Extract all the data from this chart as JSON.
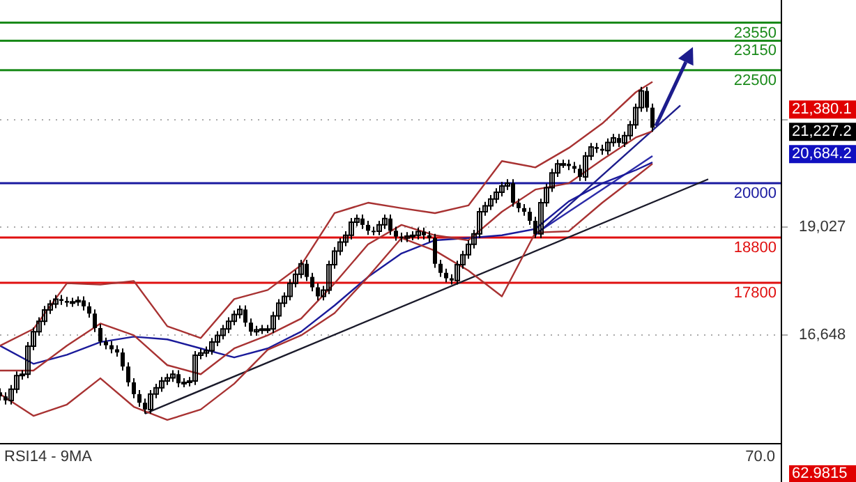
{
  "chart_data": {
    "type": "candlestick",
    "color": "#000000",
    "categories": [
      null,
      null,
      null,
      null,
      null,
      null,
      null,
      null,
      null,
      null,
      null,
      null,
      null,
      null,
      null,
      null,
      null,
      null,
      null,
      null,
      null,
      null,
      null,
      null,
      null,
      null,
      null,
      null,
      null,
      null,
      null,
      null,
      null,
      null,
      null,
      null,
      null,
      null,
      null,
      null,
      null,
      null,
      null,
      null,
      null,
      null,
      null,
      null,
      null,
      null,
      null,
      null,
      null,
      null,
      null,
      null,
      null,
      null,
      null,
      null,
      null,
      null,
      null,
      null,
      null,
      null,
      null,
      null,
      null,
      null,
      null,
      null,
      null,
      null,
      null,
      null,
      null,
      null,
      null,
      null,
      null,
      null,
      null,
      null,
      null,
      null,
      null,
      null,
      null,
      null,
      null,
      null,
      null,
      null,
      null,
      null,
      null,
      null,
      null,
      null,
      null,
      null,
      null,
      null,
      null,
      null,
      null,
      null,
      null,
      null,
      null,
      null,
      null,
      null,
      null,
      null,
      null,
      null,
      null,
      null,
      null,
      null,
      null,
      null,
      null,
      null,
      null,
      null,
      null,
      null,
      null,
      null,
      null,
      null,
      null,
      null,
      null,
      null,
      null,
      null,
      null
    ],
    "ohlc": [
      [
        15380,
        15470,
        15200,
        15290
      ],
      [
        15290,
        15380,
        15110,
        15200
      ],
      [
        15200,
        15540,
        15110,
        15450
      ],
      [
        15450,
        15840,
        15360,
        15750
      ],
      [
        15750,
        15870,
        15660,
        15780
      ],
      [
        15780,
        16490,
        15690,
        16400
      ],
      [
        16400,
        16810,
        16310,
        16720
      ],
      [
        16720,
        17040,
        16630,
        16950
      ],
      [
        16950,
        17290,
        16860,
        17200
      ],
      [
        17200,
        17420,
        17110,
        17330
      ],
      [
        17330,
        17530,
        17240,
        17440
      ],
      [
        17440,
        17530,
        17310,
        17400
      ],
      [
        17400,
        17490,
        17270,
        17360
      ],
      [
        17360,
        17470,
        17270,
        17380
      ],
      [
        17380,
        17500,
        17290,
        17410
      ],
      [
        17410,
        17500,
        17190,
        17280
      ],
      [
        17280,
        17370,
        17030,
        17120
      ],
      [
        17120,
        17210,
        16710,
        16800
      ],
      [
        16800,
        16890,
        16410,
        16500
      ],
      [
        16500,
        16590,
        16330,
        16420
      ],
      [
        16420,
        16510,
        16240,
        16330
      ],
      [
        16330,
        16420,
        16170,
        16260
      ],
      [
        16260,
        16350,
        15860,
        15950
      ],
      [
        15950,
        16040,
        15510,
        15600
      ],
      [
        15600,
        15690,
        15250,
        15340
      ],
      [
        15340,
        15430,
        15060,
        15150
      ],
      [
        15150,
        15240,
        14910,
        15000
      ],
      [
        15000,
        15430,
        14910,
        15340
      ],
      [
        15340,
        15570,
        15250,
        15480
      ],
      [
        15480,
        15720,
        15390,
        15630
      ],
      [
        15630,
        15790,
        15540,
        15700
      ],
      [
        15700,
        15870,
        15610,
        15780
      ],
      [
        15780,
        15870,
        15490,
        15580
      ],
      [
        15580,
        15690,
        15490,
        15600
      ],
      [
        15600,
        15720,
        15510,
        15630
      ],
      [
        15630,
        16290,
        15540,
        16200
      ],
      [
        16200,
        16340,
        16110,
        16250
      ],
      [
        16250,
        16390,
        16160,
        16300
      ],
      [
        16300,
        16580,
        16210,
        16490
      ],
      [
        16490,
        16730,
        16400,
        16640
      ],
      [
        16640,
        16870,
        16550,
        16780
      ],
      [
        16780,
        17040,
        16690,
        16950
      ],
      [
        16950,
        17190,
        16860,
        17100
      ],
      [
        17100,
        17300,
        17010,
        17210
      ],
      [
        17210,
        17300,
        16830,
        16920
      ],
      [
        16920,
        17010,
        16630,
        16720
      ],
      [
        16720,
        16850,
        16630,
        16760
      ],
      [
        16760,
        16870,
        16670,
        16780
      ],
      [
        16780,
        16870,
        16690,
        16780
      ],
      [
        16780,
        17160,
        16690,
        17070
      ],
      [
        17070,
        17440,
        16980,
        17350
      ],
      [
        17350,
        17590,
        17260,
        17500
      ],
      [
        17500,
        17880,
        17410,
        17790
      ],
      [
        17790,
        18080,
        17700,
        17990
      ],
      [
        17990,
        18310,
        17900,
        18220
      ],
      [
        18220,
        18310,
        17840,
        17930
      ],
      [
        17930,
        18020,
        17610,
        17700
      ],
      [
        17700,
        17790,
        17410,
        17500
      ],
      [
        17500,
        17730,
        17410,
        17640
      ],
      [
        17640,
        18290,
        17550,
        18200
      ],
      [
        18200,
        18590,
        18110,
        18500
      ],
      [
        18500,
        18790,
        18410,
        18700
      ],
      [
        18700,
        18940,
        18610,
        18850
      ],
      [
        18850,
        19230,
        18760,
        19140
      ],
      [
        19140,
        19310,
        19050,
        19220
      ],
      [
        19220,
        19310,
        18990,
        19080
      ],
      [
        19080,
        19170,
        18860,
        18950
      ],
      [
        18950,
        19040,
        18850,
        18940
      ],
      [
        18940,
        19170,
        18850,
        19080
      ],
      [
        19080,
        19310,
        18990,
        19220
      ],
      [
        19220,
        19310,
        18860,
        18950
      ],
      [
        18950,
        19040,
        18730,
        18820
      ],
      [
        18820,
        18910,
        18700,
        18790
      ],
      [
        18790,
        18920,
        18700,
        18830
      ],
      [
        18830,
        18940,
        18740,
        18850
      ],
      [
        18850,
        19020,
        18760,
        18930
      ],
      [
        18930,
        19020,
        18760,
        18850
      ],
      [
        18850,
        18940,
        18700,
        18790
      ],
      [
        18790,
        18880,
        18130,
        18220
      ],
      [
        18220,
        18310,
        17930,
        18020
      ],
      [
        18020,
        18110,
        17810,
        17900
      ],
      [
        17900,
        17990,
        17760,
        17850
      ],
      [
        17850,
        18290,
        17760,
        18200
      ],
      [
        18200,
        18510,
        18110,
        18420
      ],
      [
        18420,
        18740,
        18330,
        18650
      ],
      [
        18650,
        18970,
        18560,
        18880
      ],
      [
        18880,
        19460,
        18790,
        19370
      ],
      [
        19370,
        19590,
        19280,
        19500
      ],
      [
        19500,
        19740,
        19410,
        19650
      ],
      [
        19650,
        19890,
        19560,
        19800
      ],
      [
        19800,
        20030,
        19710,
        19940
      ],
      [
        19940,
        20090,
        19850,
        20000
      ],
      [
        20000,
        20090,
        19480,
        19570
      ],
      [
        19570,
        19660,
        19360,
        19450
      ],
      [
        19450,
        19540,
        19280,
        19370
      ],
      [
        19370,
        19460,
        19080,
        19170
      ],
      [
        19170,
        19260,
        18790,
        18880
      ],
      [
        18880,
        19660,
        18790,
        19570
      ],
      [
        19570,
        19990,
        19480,
        19900
      ],
      [
        19900,
        20320,
        19810,
        20230
      ],
      [
        20230,
        20520,
        20140,
        20430
      ],
      [
        20430,
        20520,
        20340,
        20430
      ],
      [
        20430,
        20520,
        20290,
        20380
      ],
      [
        20380,
        20470,
        20230,
        20320
      ],
      [
        20320,
        20410,
        20050,
        20140
      ],
      [
        20140,
        20690,
        20050,
        20600
      ],
      [
        20600,
        20890,
        20510,
        20800
      ],
      [
        20800,
        20890,
        20670,
        20760
      ],
      [
        20760,
        20850,
        20630,
        20720
      ],
      [
        20720,
        20990,
        20630,
        20900
      ],
      [
        20900,
        21090,
        20810,
        21000
      ],
      [
        21000,
        21090,
        20800,
        20890
      ],
      [
        20890,
        21140,
        20800,
        21050
      ],
      [
        21050,
        21380,
        20960,
        21290
      ],
      [
        21290,
        21760,
        21200,
        21670
      ],
      [
        21670,
        22130,
        21580,
        22040
      ],
      [
        22040,
        22130,
        21580,
        21670
      ],
      [
        21670,
        21760,
        21140,
        21227.2
      ],
      null,
      null,
      null,
      null,
      null,
      null,
      null,
      null,
      null,
      null,
      null,
      null,
      null,
      null,
      null,
      null,
      null,
      null,
      null,
      null,
      null,
      null,
      null
    ],
    "series": [
      {
        "type": "line",
        "color": "#a83232",
        "values": [
          16410,
          null,
          null,
          null,
          null,
          null,
          16780,
          null,
          null,
          null,
          null,
          null,
          17790,
          null,
          null,
          null,
          null,
          null,
          17760,
          null,
          null,
          null,
          null,
          null,
          17840,
          null,
          null,
          null,
          null,
          null,
          16840,
          null,
          null,
          null,
          null,
          null,
          16580,
          null,
          null,
          null,
          null,
          null,
          17440,
          null,
          null,
          null,
          null,
          null,
          17640,
          null,
          null,
          null,
          null,
          null,
          18190,
          null,
          null,
          null,
          null,
          null,
          19340,
          null,
          null,
          null,
          null,
          null,
          19570,
          null,
          null,
          null,
          null,
          null,
          19450,
          null,
          null,
          null,
          null,
          null,
          19340,
          null,
          null,
          null,
          null,
          null,
          19510,
          null,
          null,
          null,
          null,
          null,
          20490,
          null,
          null,
          null,
          null,
          null,
          20350,
          null,
          null,
          null,
          null,
          null,
          20780,
          null,
          null,
          null,
          null,
          null,
          21320,
          null,
          null,
          null,
          null,
          null,
          22010,
          null,
          null,
          22240,
          null,
          null,
          null,
          null,
          null,
          null,
          null,
          null,
          null,
          null,
          null,
          null,
          null,
          null,
          null,
          null,
          null,
          null,
          null,
          null,
          null,
          null,
          null
        ]
      },
      {
        "type": "line",
        "color": "#a83232",
        "values": [
          15340,
          null,
          null,
          null,
          null,
          null,
          14860,
          null,
          null,
          null,
          null,
          null,
          15110,
          null,
          null,
          null,
          null,
          null,
          15690,
          null,
          null,
          null,
          null,
          null,
          15060,
          null,
          null,
          null,
          null,
          null,
          14770,
          null,
          null,
          null,
          null,
          null,
          15000,
          null,
          null,
          null,
          null,
          null,
          15570,
          null,
          null,
          null,
          null,
          null,
          16320,
          null,
          null,
          null,
          null,
          null,
          16640,
          null,
          null,
          null,
          null,
          null,
          17130,
          null,
          null,
          null,
          null,
          null,
          17930,
          null,
          null,
          null,
          null,
          null,
          18790,
          null,
          null,
          null,
          null,
          null,
          18510,
          null,
          null,
          null,
          null,
          null,
          18070,
          null,
          null,
          null,
          null,
          null,
          17500,
          null,
          null,
          null,
          null,
          null,
          18910,
          null,
          null,
          null,
          null,
          null,
          18940,
          null,
          null,
          null,
          null,
          null,
          19570,
          null,
          null,
          null,
          null,
          null,
          20140,
          null,
          null,
          20430,
          null,
          null,
          null,
          null,
          null,
          null,
          null,
          null,
          null,
          null,
          null,
          null,
          null,
          null,
          null,
          null,
          null,
          null,
          null,
          null,
          null,
          null,
          null
        ]
      },
      {
        "type": "line",
        "color": "#a83232",
        "values": [
          15860,
          null,
          null,
          null,
          null,
          null,
          15860,
          null,
          null,
          null,
          null,
          null,
          16410,
          null,
          null,
          null,
          null,
          null,
          16900,
          null,
          null,
          null,
          null,
          null,
          16640,
          null,
          null,
          null,
          null,
          null,
          15980,
          null,
          null,
          null,
          null,
          null,
          15780,
          null,
          null,
          null,
          null,
          null,
          16350,
          null,
          null,
          null,
          null,
          null,
          16640,
          null,
          null,
          null,
          null,
          null,
          17010,
          null,
          null,
          null,
          null,
          null,
          17790,
          null,
          null,
          null,
          null,
          null,
          18650,
          null,
          null,
          null,
          null,
          null,
          19080,
          null,
          null,
          null,
          null,
          null,
          18850,
          null,
          null,
          null,
          null,
          null,
          18740,
          null,
          null,
          null,
          null,
          null,
          19370,
          null,
          null,
          null,
          null,
          null,
          19860,
          null,
          null,
          null,
          null,
          null,
          20000,
          null,
          null,
          null,
          null,
          null,
          20520,
          null,
          null,
          null,
          null,
          null,
          21010,
          null,
          null,
          21150,
          null,
          null,
          null,
          null,
          null,
          null,
          null,
          null,
          null,
          null,
          null,
          null,
          null,
          null,
          null,
          null,
          null,
          null,
          null,
          null,
          null,
          null,
          null
        ]
      },
      {
        "type": "line",
        "color": "#1a1a9a",
        "values": [
          16410,
          null,
          null,
          null,
          null,
          null,
          16010,
          null,
          null,
          null,
          null,
          null,
          16210,
          null,
          null,
          null,
          null,
          null,
          16490,
          null,
          null,
          null,
          null,
          null,
          16610,
          null,
          null,
          null,
          null,
          null,
          16550,
          null,
          null,
          null,
          null,
          null,
          16350,
          null,
          null,
          null,
          null,
          null,
          16150,
          null,
          null,
          null,
          null,
          null,
          16350,
          null,
          null,
          null,
          null,
          null,
          16720,
          null,
          null,
          null,
          null,
          null,
          17300,
          null,
          null,
          null,
          null,
          null,
          17930,
          null,
          null,
          null,
          null,
          null,
          18450,
          null,
          null,
          null,
          null,
          null,
          18740,
          null,
          null,
          null,
          null,
          null,
          18790,
          null,
          null,
          null,
          null,
          null,
          18850,
          null,
          null,
          null,
          null,
          null,
          18990,
          null,
          null,
          null,
          null,
          null,
          19600,
          null,
          null,
          null,
          null,
          null,
          20000,
          null,
          null,
          null,
          null,
          null,
          20290,
          null,
          null,
          20460,
          null,
          null,
          null,
          null,
          null,
          null,
          null,
          null,
          null,
          null,
          null,
          null,
          null,
          null,
          null,
          null,
          null,
          null,
          null,
          null,
          null,
          null,
          null
        ]
      },
      {
        "type": "line",
        "color": "#1a1a2a",
        "values": [
          null,
          null,
          null,
          null,
          null,
          null,
          null,
          null,
          null,
          null,
          null,
          null,
          null,
          null,
          null,
          null,
          null,
          null,
          null,
          null,
          null,
          null,
          null,
          null,
          null,
          null,
          14910,
          null,
          null,
          null,
          null,
          null,
          null,
          null,
          null,
          null,
          null,
          null,
          null,
          null,
          null,
          null,
          null,
          null,
          null,
          null,
          null,
          null,
          null,
          null,
          null,
          null,
          null,
          null,
          null,
          null,
          null,
          null,
          null,
          null,
          null,
          null,
          null,
          null,
          null,
          null,
          null,
          null,
          null,
          null,
          null,
          null,
          null,
          null,
          null,
          null,
          null,
          null,
          null,
          null,
          null,
          null,
          null,
          null,
          null,
          null,
          null,
          null,
          null,
          null,
          null,
          null,
          null,
          null,
          null,
          null,
          null,
          null,
          null,
          null,
          null,
          null,
          null,
          null,
          null,
          null,
          null,
          null,
          null,
          null,
          null,
          null,
          null,
          null,
          null,
          null,
          null,
          null,
          null,
          null,
          null,
          null,
          null,
          null,
          null,
          null,
          null,
          20090,
          null,
          null,
          null,
          null,
          null,
          null,
          null,
          null,
          null,
          null,
          null,
          null,
          null
        ]
      },
      {
        "type": "line",
        "color": "#1c1c8c",
        "values": [
          null,
          null,
          null,
          null,
          null,
          null,
          null,
          null,
          null,
          null,
          null,
          null,
          null,
          null,
          null,
          null,
          null,
          null,
          null,
          null,
          null,
          null,
          null,
          null,
          null,
          null,
          null,
          null,
          null,
          null,
          null,
          null,
          null,
          null,
          null,
          null,
          null,
          null,
          null,
          null,
          null,
          null,
          null,
          null,
          null,
          null,
          null,
          null,
          null,
          null,
          null,
          null,
          null,
          null,
          null,
          null,
          null,
          null,
          null,
          null,
          null,
          null,
          null,
          null,
          null,
          null,
          null,
          null,
          null,
          null,
          null,
          null,
          null,
          null,
          null,
          null,
          null,
          null,
          null,
          null,
          null,
          null,
          null,
          null,
          null,
          null,
          null,
          null,
          null,
          null,
          null,
          null,
          null,
          null,
          null,
          null,
          18850,
          null,
          null,
          null,
          null,
          null,
          null,
          null,
          null,
          null,
          null,
          null,
          null,
          null,
          null,
          null,
          null,
          null,
          null,
          null,
          null,
          null,
          null,
          null,
          null,
          null,
          21720,
          null,
          null,
          null,
          null,
          null,
          null,
          null,
          null,
          null,
          null,
          null,
          null,
          null,
          null,
          null,
          null,
          null,
          null
        ]
      },
      {
        "type": "line",
        "color": "#2a2aa8",
        "values": [
          null,
          null,
          null,
          null,
          null,
          null,
          null,
          null,
          null,
          null,
          null,
          null,
          null,
          null,
          null,
          null,
          null,
          null,
          null,
          null,
          null,
          null,
          null,
          null,
          null,
          null,
          null,
          null,
          null,
          null,
          null,
          null,
          null,
          null,
          null,
          null,
          null,
          null,
          null,
          null,
          null,
          null,
          null,
          null,
          null,
          null,
          null,
          null,
          null,
          null,
          null,
          null,
          null,
          null,
          null,
          null,
          null,
          null,
          null,
          null,
          null,
          null,
          null,
          null,
          null,
          null,
          null,
          null,
          null,
          null,
          null,
          null,
          null,
          null,
          null,
          null,
          null,
          null,
          null,
          null,
          null,
          null,
          null,
          null,
          null,
          null,
          null,
          null,
          null,
          null,
          null,
          null,
          null,
          null,
          null,
          null,
          18880,
          null,
          null,
          null,
          null,
          null,
          null,
          null,
          null,
          null,
          null,
          null,
          null,
          null,
          null,
          null,
          null,
          null,
          null,
          null,
          null,
          20600,
          null,
          null,
          null,
          null,
          null,
          null,
          null,
          null,
          null,
          null,
          null,
          null,
          null,
          null,
          null,
          null,
          null,
          null,
          null,
          null,
          null,
          null,
          null
        ]
      }
    ],
    "ylim": [
      14260,
      23600
    ],
    "yticks": [
      {
        "value": 16648,
        "label": "16,648"
      },
      {
        "value": 19027,
        "label": "19,027"
      },
      {
        "value": 21406,
        "label": null
      }
    ],
    "ref_lines": [
      {
        "axis": "y",
        "value": 23550,
        "label": "23550",
        "color": "#1a8a1a"
      },
      {
        "axis": "y",
        "value": 23150,
        "label": "23150",
        "color": "#1a8a1a"
      },
      {
        "axis": "y",
        "value": 22500,
        "label": "22500",
        "color": "#1a8a1a"
      },
      {
        "axis": "y",
        "value": 20000,
        "label": "20000",
        "color": "#1a1aa0"
      },
      {
        "axis": "y",
        "value": 18800,
        "label": "18800",
        "color": "#e01010"
      },
      {
        "axis": "y",
        "value": 17800,
        "label": "17800",
        "color": "#e01010"
      }
    ],
    "annotations": [
      "21,380.1",
      "21,227.2",
      "20,684.2",
      "RSI14 - 9MA",
      "70.0",
      "62.9815"
    ],
    "grid": "y",
    "legend": false,
    "tick_labels": "y"
  }
}
